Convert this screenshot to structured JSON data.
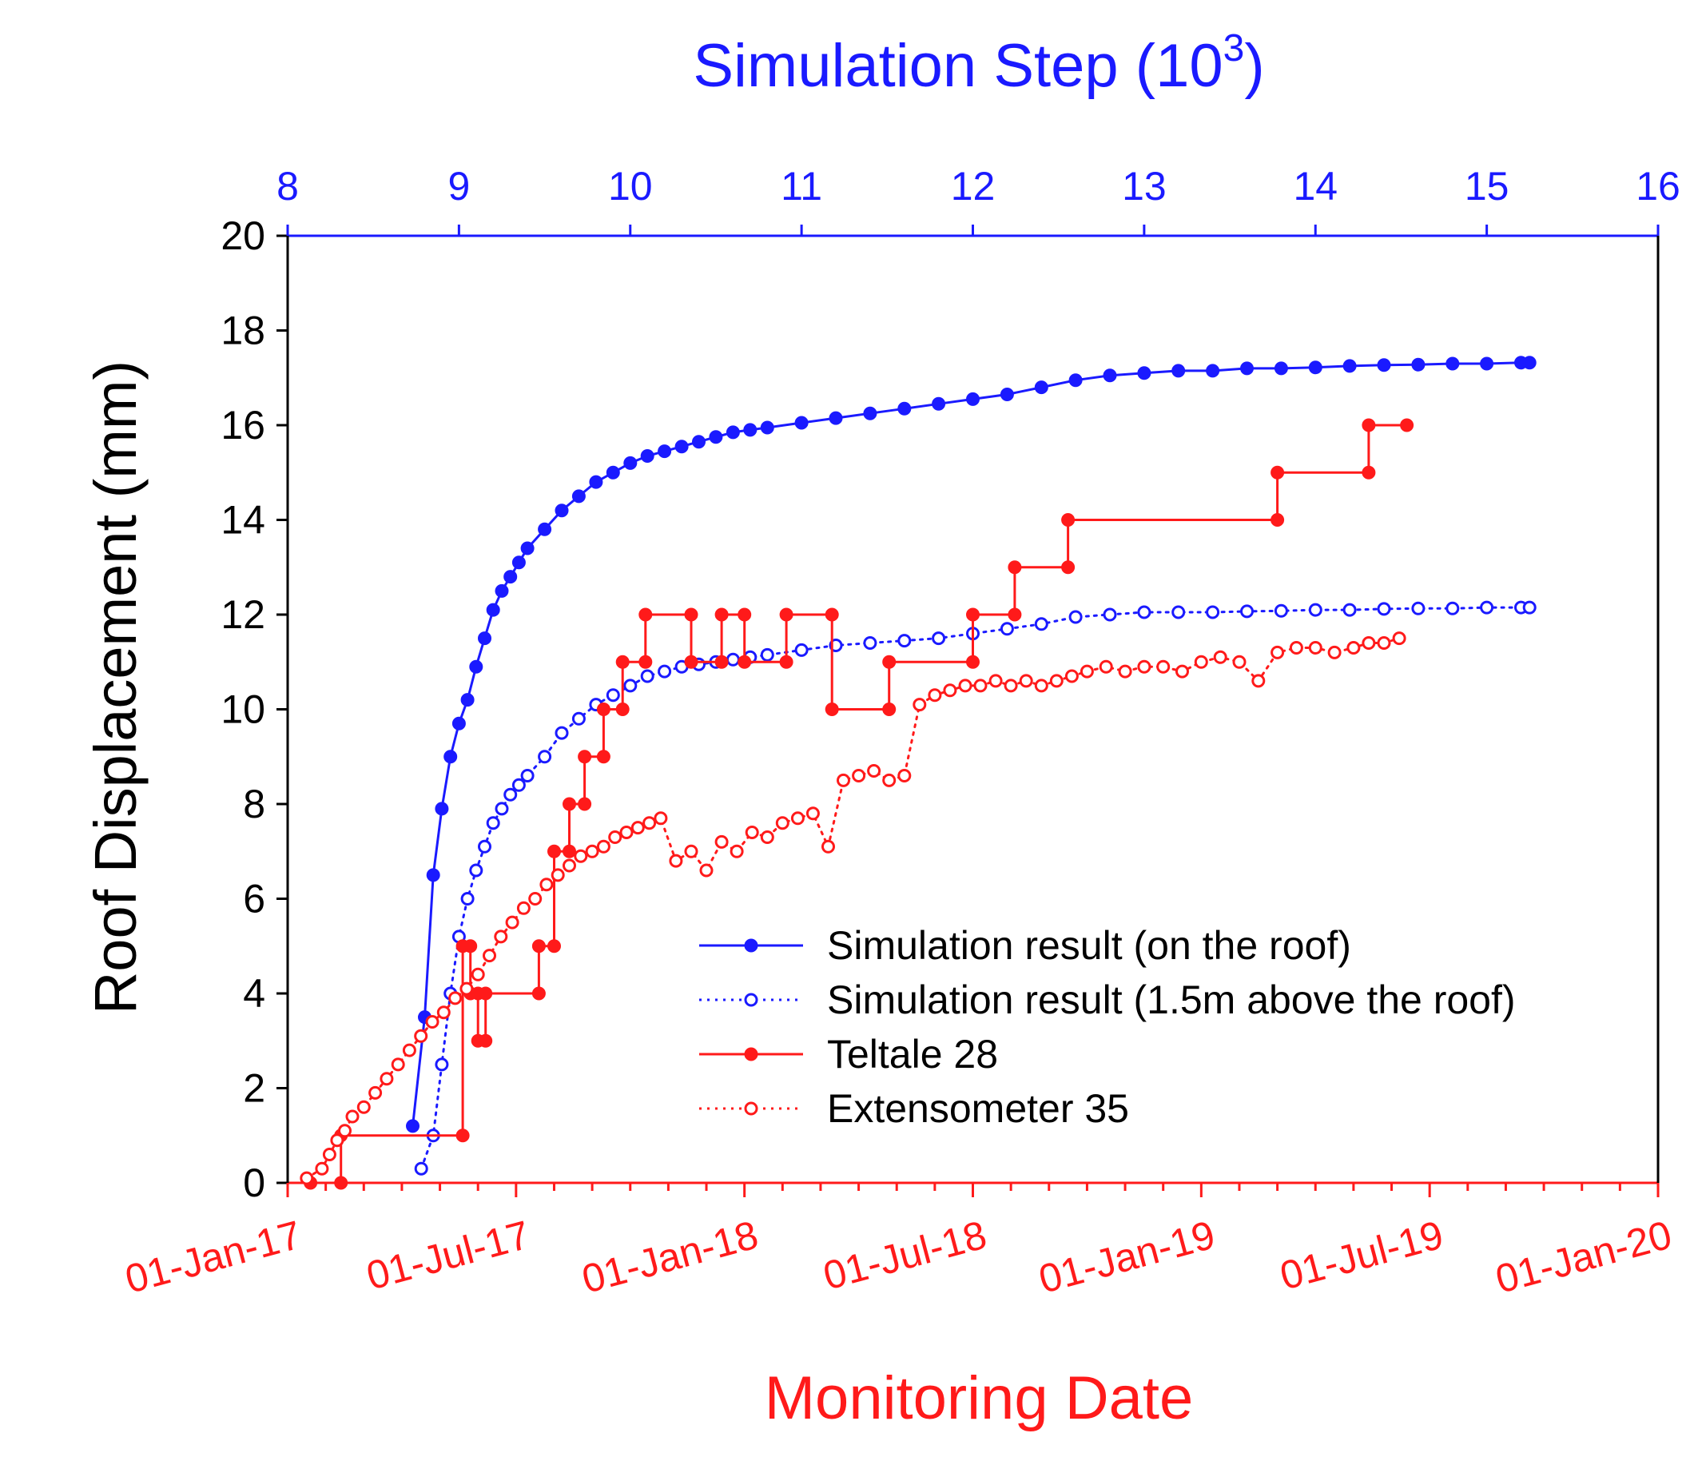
{
  "chart_data": {
    "type": "line",
    "top_axis": {
      "label": "Simulation Step (10",
      "label_sup": "3",
      "label_close": ")",
      "range": [
        8,
        16
      ],
      "ticks": [
        "8",
        "9",
        "10",
        "11",
        "12",
        "13",
        "14",
        "15",
        "16"
      ],
      "color": "#1a1aff"
    },
    "y_axis": {
      "label": "Roof Displacement (mm)",
      "range": [
        0,
        20
      ],
      "ticks": [
        "0",
        "2",
        "4",
        "6",
        "8",
        "10",
        "12",
        "14",
        "16",
        "18",
        "20"
      ]
    },
    "bottom_axis": {
      "label": "Monitoring Date",
      "range_months": [
        0,
        36
      ],
      "major_months": [
        0,
        6,
        12,
        18,
        24,
        30,
        36
      ],
      "ticks": [
        "01-Jan-17",
        "01-Jul-17",
        "01-Jan-18",
        "01-Jul-18",
        "01-Jan-19",
        "01-Jul-19",
        "01-Jan-20"
      ],
      "color": "#ff1a1a"
    },
    "series": [
      {
        "name": "Simulation result (on the roof)",
        "axis": "top",
        "color": "#1a1aff",
        "style": "solid-filled",
        "x": [
          8.73,
          8.8,
          8.85,
          8.9,
          8.95,
          9.0,
          9.05,
          9.1,
          9.15,
          9.2,
          9.25,
          9.3,
          9.35,
          9.4,
          9.5,
          9.6,
          9.7,
          9.8,
          9.9,
          10.0,
          10.1,
          10.2,
          10.3,
          10.4,
          10.5,
          10.6,
          10.7,
          10.8,
          11.0,
          11.2,
          11.4,
          11.6,
          11.8,
          12.0,
          12.2,
          12.4,
          12.6,
          12.8,
          13.0,
          13.2,
          13.4,
          13.6,
          13.8,
          14.0,
          14.2,
          14.4,
          14.6,
          14.8,
          15.0,
          15.2,
          15.25
        ],
        "y": [
          1.2,
          3.5,
          6.5,
          7.9,
          9.0,
          9.7,
          10.2,
          10.9,
          11.5,
          12.1,
          12.5,
          12.8,
          13.1,
          13.4,
          13.8,
          14.2,
          14.5,
          14.8,
          15.0,
          15.2,
          15.35,
          15.45,
          15.55,
          15.65,
          15.75,
          15.85,
          15.9,
          15.95,
          16.05,
          16.15,
          16.25,
          16.35,
          16.45,
          16.55,
          16.65,
          16.8,
          16.95,
          17.05,
          17.1,
          17.15,
          17.15,
          17.2,
          17.2,
          17.22,
          17.25,
          17.27,
          17.28,
          17.3,
          17.3,
          17.32,
          17.32
        ]
      },
      {
        "name": "Simulation result (1.5m above the roof)",
        "axis": "top",
        "color": "#1a1aff",
        "style": "dotted-open",
        "x": [
          8.78,
          8.85,
          8.9,
          8.95,
          9.0,
          9.05,
          9.1,
          9.15,
          9.2,
          9.25,
          9.3,
          9.35,
          9.4,
          9.5,
          9.6,
          9.7,
          9.8,
          9.9,
          10.0,
          10.1,
          10.2,
          10.3,
          10.4,
          10.5,
          10.6,
          10.7,
          10.8,
          11.0,
          11.2,
          11.4,
          11.6,
          11.8,
          12.0,
          12.2,
          12.4,
          12.6,
          12.8,
          13.0,
          13.2,
          13.4,
          13.6,
          13.8,
          14.0,
          14.2,
          14.4,
          14.6,
          14.8,
          15.0,
          15.2,
          15.25
        ],
        "y": [
          0.3,
          1.0,
          2.5,
          4.0,
          5.2,
          6.0,
          6.6,
          7.1,
          7.6,
          7.9,
          8.2,
          8.4,
          8.6,
          9.0,
          9.5,
          9.8,
          10.1,
          10.3,
          10.5,
          10.7,
          10.8,
          10.9,
          10.95,
          11.0,
          11.05,
          11.1,
          11.15,
          11.25,
          11.35,
          11.4,
          11.45,
          11.5,
          11.6,
          11.7,
          11.8,
          11.95,
          12.0,
          12.05,
          12.05,
          12.05,
          12.07,
          12.08,
          12.1,
          12.1,
          12.12,
          12.13,
          12.13,
          12.15,
          12.15,
          12.15
        ]
      },
      {
        "name": "Teltale 28",
        "axis": "bottom",
        "color": "#ff1a1a",
        "style": "step-solid-filled",
        "x": [
          0.6,
          1.4,
          1.4,
          4.6,
          4.6,
          4.8,
          4.8,
          5.0,
          5.0,
          5.2,
          5.2,
          6.6,
          6.6,
          7.0,
          7.0,
          7.4,
          7.4,
          7.8,
          7.8,
          8.3,
          8.3,
          8.8,
          8.8,
          9.4,
          9.4,
          10.6,
          10.6,
          11.4,
          11.4,
          12.0,
          12.0,
          13.1,
          13.1,
          14.3,
          14.3,
          15.8,
          15.8,
          18.0,
          18.0,
          19.1,
          19.1,
          20.5,
          20.5,
          26.0,
          26.0,
          28.4,
          28.4,
          29.4
        ],
        "y": [
          0,
          0,
          1,
          1,
          5,
          5,
          4,
          4,
          3,
          3,
          4,
          4,
          5,
          5,
          7,
          7,
          8,
          8,
          9,
          9,
          10,
          10,
          11,
          11,
          12,
          12,
          11,
          11,
          12,
          12,
          11,
          11,
          12,
          12,
          10,
          10,
          11,
          11,
          12,
          12,
          13,
          13,
          14,
          14,
          15,
          15,
          16,
          16
        ]
      },
      {
        "name": "Extensometer 35",
        "axis": "bottom",
        "color": "#ff1a1a",
        "style": "dotted-open",
        "x": [
          0.5,
          0.9,
          1.1,
          1.3,
          1.5,
          1.7,
          2.0,
          2.3,
          2.6,
          2.9,
          3.2,
          3.5,
          3.8,
          4.1,
          4.4,
          4.7,
          5.0,
          5.3,
          5.6,
          5.9,
          6.2,
          6.5,
          6.8,
          7.1,
          7.4,
          7.7,
          8.0,
          8.3,
          8.6,
          8.9,
          9.2,
          9.5,
          9.8,
          10.2,
          10.6,
          11.0,
          11.4,
          11.8,
          12.2,
          12.6,
          13.0,
          13.4,
          13.8,
          14.2,
          14.6,
          15.0,
          15.4,
          15.8,
          16.2,
          16.6,
          17.0,
          17.4,
          17.8,
          18.2,
          18.6,
          19.0,
          19.4,
          19.8,
          20.2,
          20.6,
          21.0,
          21.5,
          22.0,
          22.5,
          23.0,
          23.5,
          24.0,
          24.5,
          25.0,
          25.5,
          26.0,
          26.5,
          27.0,
          27.5,
          28.0,
          28.4,
          28.8,
          29.2
        ],
        "y": [
          0.1,
          0.3,
          0.6,
          0.9,
          1.1,
          1.4,
          1.6,
          1.9,
          2.2,
          2.5,
          2.8,
          3.1,
          3.4,
          3.6,
          3.9,
          4.1,
          4.4,
          4.8,
          5.2,
          5.5,
          5.8,
          6.0,
          6.3,
          6.5,
          6.7,
          6.9,
          7.0,
          7.1,
          7.3,
          7.4,
          7.5,
          7.6,
          7.7,
          6.8,
          7.0,
          6.6,
          7.2,
          7.0,
          7.4,
          7.3,
          7.6,
          7.7,
          7.8,
          7.1,
          8.5,
          8.6,
          8.7,
          8.5,
          8.6,
          10.1,
          10.3,
          10.4,
          10.5,
          10.5,
          10.6,
          10.5,
          10.6,
          10.5,
          10.6,
          10.7,
          10.8,
          10.9,
          10.8,
          10.9,
          10.9,
          10.8,
          11.0,
          11.1,
          11.0,
          10.6,
          11.2,
          11.3,
          11.3,
          11.2,
          11.3,
          11.4,
          11.4,
          11.5
        ]
      }
    ],
    "legend": {
      "position": "lower-right",
      "entries": [
        "Simulation result (on the roof)",
        "Simulation result (1.5m above the roof)",
        "Teltale 28",
        "Extensometer 35"
      ]
    }
  }
}
